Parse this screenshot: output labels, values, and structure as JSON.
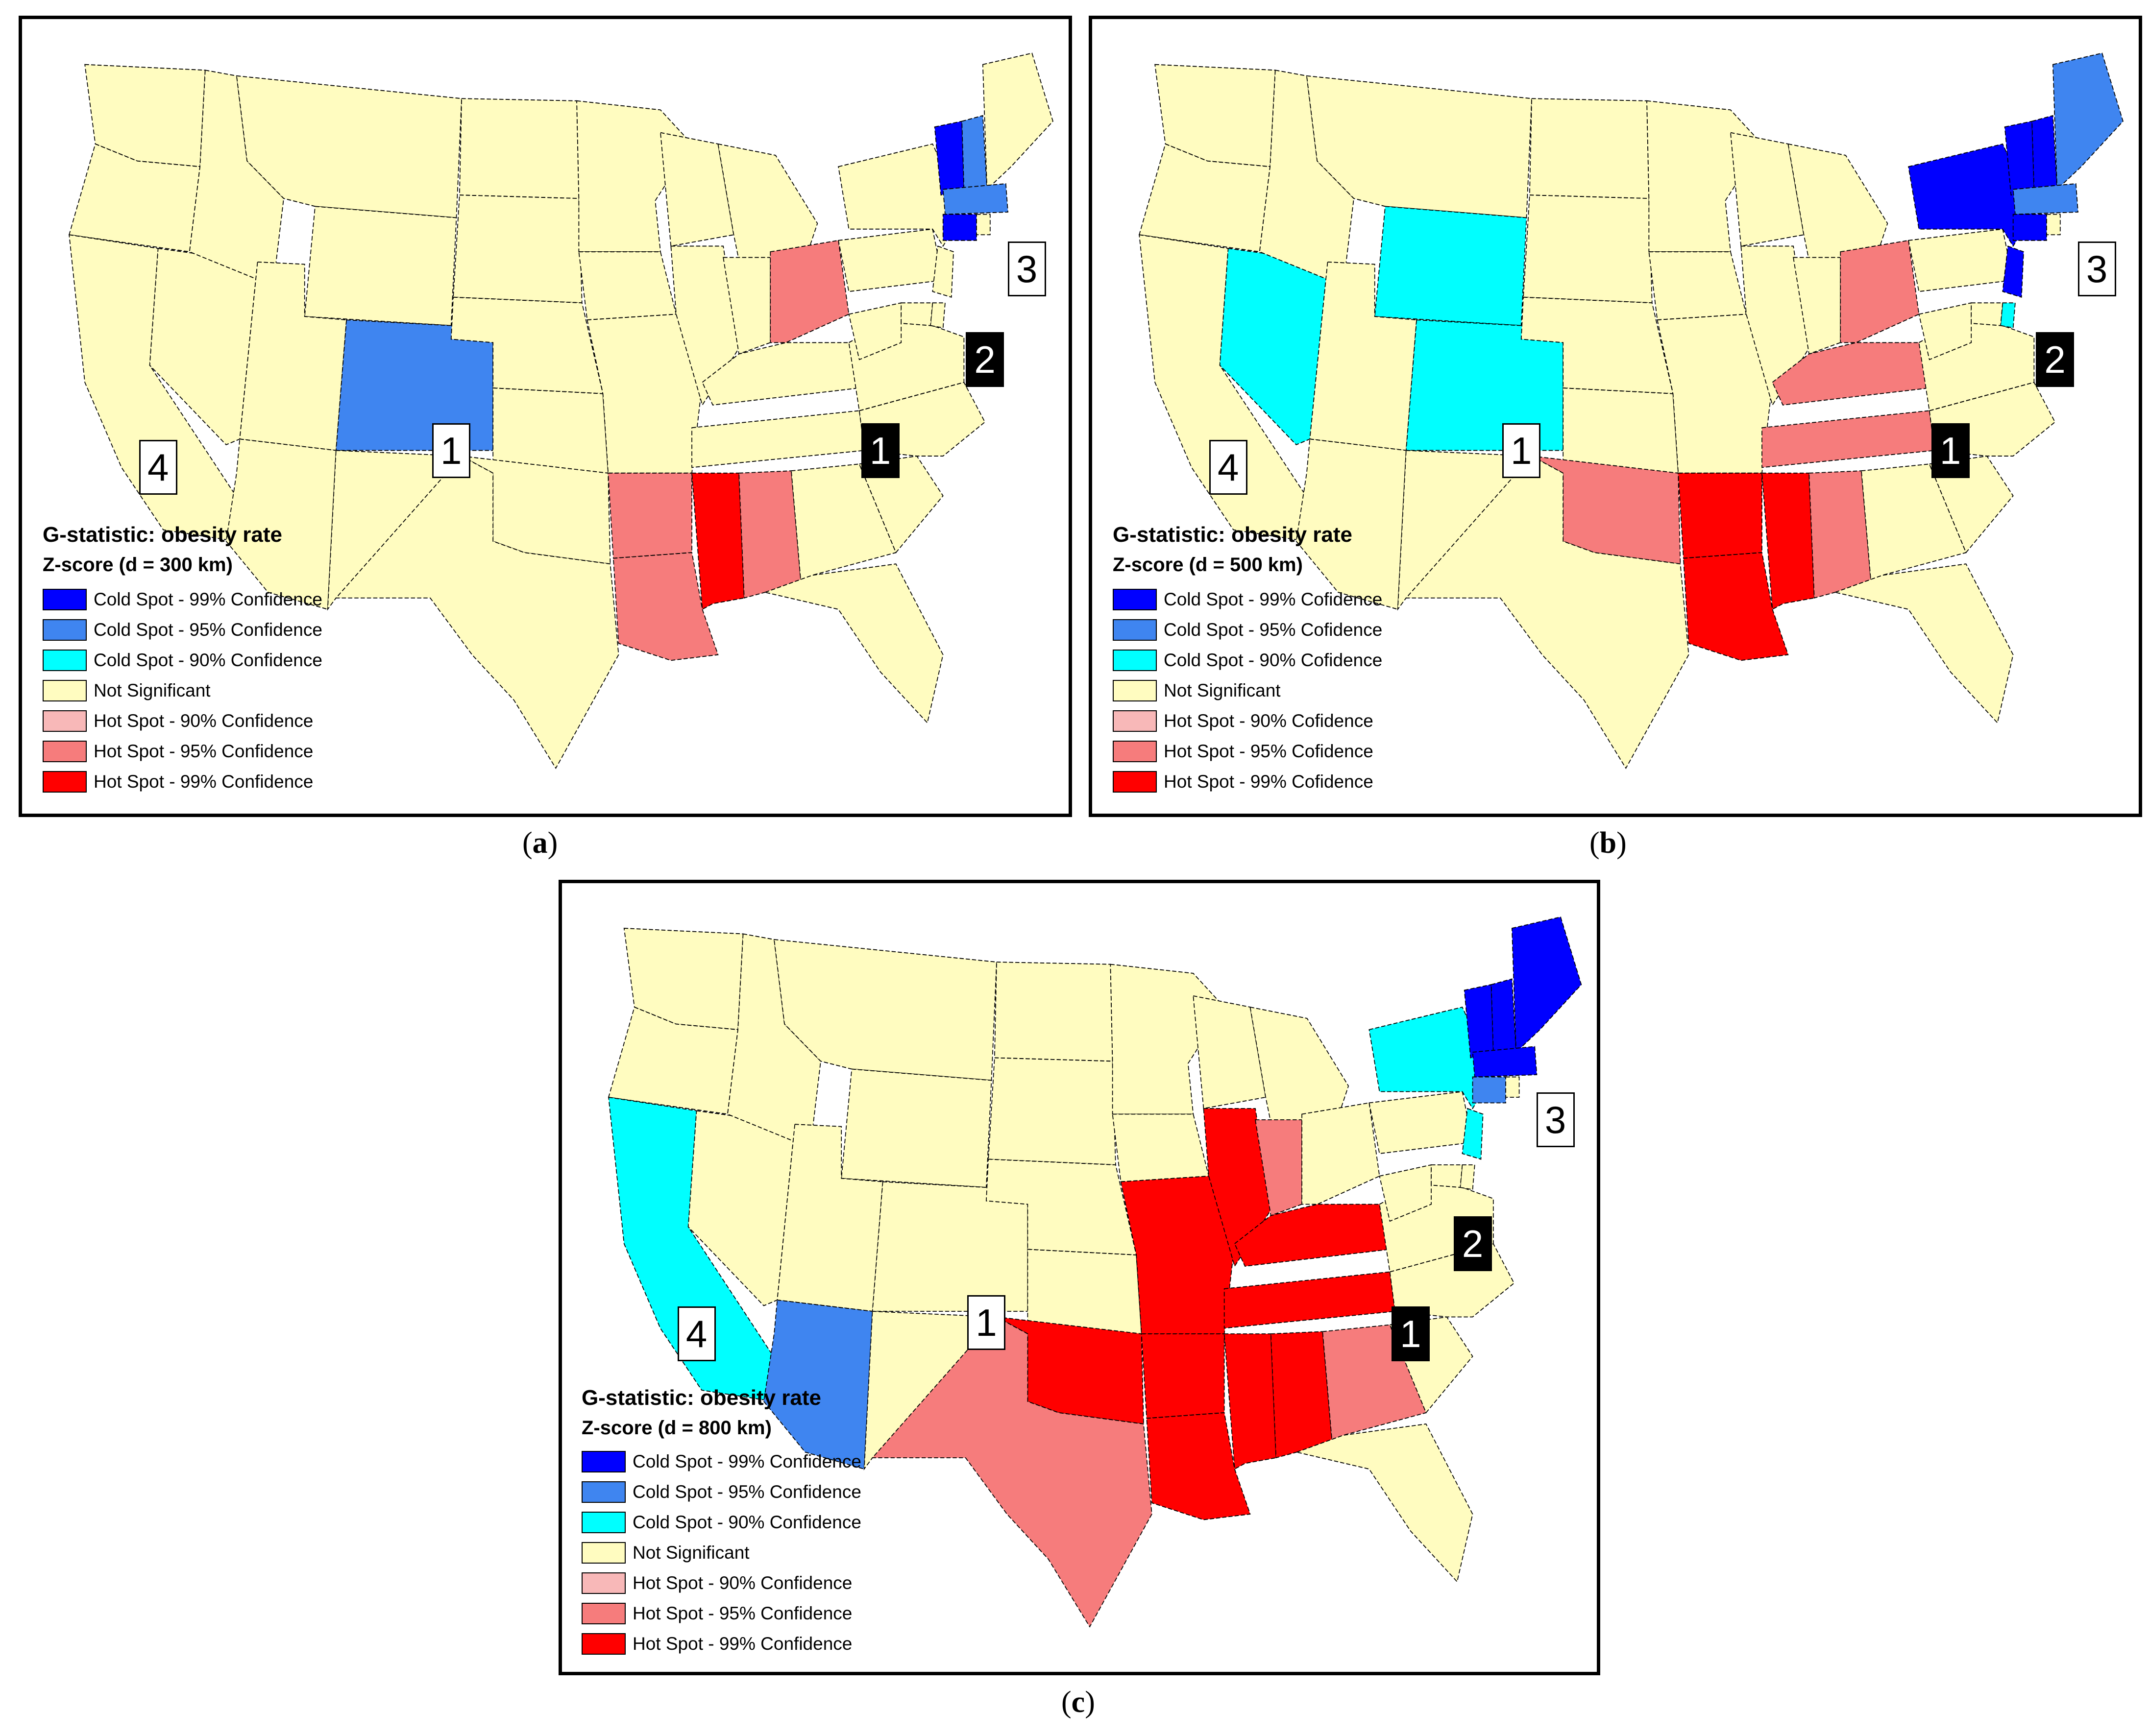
{
  "colors": {
    "cold_99": "#0000ff",
    "cold_95": "#3f85f0",
    "cold_90": "#00ffff",
    "not_significant": "#fffcc0",
    "hot_90": "#f8b8b8",
    "hot_95": "#f67c7c",
    "hot_99": "#ff0000",
    "border": "#000000"
  },
  "panels": [
    {
      "id": "a",
      "caption_letter": "a",
      "title": "G-statistic: obesity rate",
      "subtitle": "Z-score (d = 300 km)",
      "legend": [
        {
          "label": "Cold Spot - 99% Confidence",
          "color_key": "cold_99"
        },
        {
          "label": "Cold Spot - 95% Confidence",
          "color_key": "cold_95"
        },
        {
          "label": "Cold Spot - 90% Confidence",
          "color_key": "cold_90"
        },
        {
          "label": "Not Significant",
          "color_key": "not_significant"
        },
        {
          "label": "Hot Spot - 90% Confidence",
          "color_key": "hot_90"
        },
        {
          "label": "Hot Spot - 95% Confidence",
          "color_key": "hot_95"
        },
        {
          "label": "Hot Spot - 99% Confidence",
          "color_key": "hot_99"
        }
      ],
      "markers": [
        {
          "label": "1",
          "style": "white"
        },
        {
          "label": "1",
          "style": "black"
        },
        {
          "label": "2",
          "style": "black"
        },
        {
          "label": "3",
          "style": "white"
        },
        {
          "label": "4",
          "style": "white"
        }
      ],
      "regions": {
        "colorado": "cold_95",
        "ohio": "hot_95",
        "arkansas": "hot_95",
        "louisiana": "hot_95",
        "mississippi": "hot_99",
        "alabama": "hot_95",
        "vermont": "cold_99",
        "new_hampshire": "cold_95",
        "massachusetts": "cold_95",
        "connecticut": "cold_99"
      }
    },
    {
      "id": "b",
      "caption_letter": "b",
      "title": "G-statistic: obesity rate",
      "subtitle": "Z-score (d = 500 km)",
      "legend": [
        {
          "label": "Cold Spot - 99% Cofidence",
          "color_key": "cold_99"
        },
        {
          "label": "Cold Spot - 95% Cofidence",
          "color_key": "cold_95"
        },
        {
          "label": "Cold Spot - 90% Cofidence",
          "color_key": "cold_90"
        },
        {
          "label": "Not Significant",
          "color_key": "not_significant"
        },
        {
          "label": "Hot Spot - 90% Cofidence",
          "color_key": "hot_90"
        },
        {
          "label": "Hot Spot - 95% Cofidence",
          "color_key": "hot_95"
        },
        {
          "label": "Hot Spot - 99% Cofidence",
          "color_key": "hot_99"
        }
      ],
      "markers": [
        {
          "label": "1",
          "style": "white"
        },
        {
          "label": "1",
          "style": "black"
        },
        {
          "label": "2",
          "style": "black"
        },
        {
          "label": "3",
          "style": "white"
        },
        {
          "label": "4",
          "style": "white"
        }
      ],
      "regions": {
        "nevada": "cold_90",
        "wyoming": "cold_90",
        "colorado": "cold_90",
        "oklahoma": "hot_95",
        "arkansas": "hot_99",
        "louisiana": "hot_99",
        "mississippi": "hot_99",
        "alabama": "hot_95",
        "tennessee": "hot_95",
        "kentucky": "hot_95",
        "ohio": "hot_95",
        "new_york": "cold_99",
        "vermont": "cold_99",
        "new_hampshire": "cold_99",
        "maine": "cold_95",
        "massachusetts": "cold_95",
        "connecticut": "cold_99",
        "new_jersey": "cold_99",
        "delaware": "cold_90"
      }
    },
    {
      "id": "c",
      "caption_letter": "c",
      "title": "G-statistic: obesity rate",
      "subtitle": "Z-score (d = 800 km)",
      "legend": [
        {
          "label": "Cold Spot - 99% Confidence",
          "color_key": "cold_99"
        },
        {
          "label": "Cold Spot - 95% Confidence",
          "color_key": "cold_95"
        },
        {
          "label": "Cold Spot - 90% Confidence",
          "color_key": "cold_90"
        },
        {
          "label": "Not Significant",
          "color_key": "not_significant"
        },
        {
          "label": "Hot Spot - 90% Confidence",
          "color_key": "hot_90"
        },
        {
          "label": "Hot Spot - 95% Confidence",
          "color_key": "hot_95"
        },
        {
          "label": "Hot Spot - 99% Confidence",
          "color_key": "hot_99"
        }
      ],
      "markers": [
        {
          "label": "1",
          "style": "white"
        },
        {
          "label": "1",
          "style": "black"
        },
        {
          "label": "2",
          "style": "black"
        },
        {
          "label": "3",
          "style": "white"
        },
        {
          "label": "4",
          "style": "white"
        }
      ],
      "regions": {
        "california": "cold_90",
        "arizona": "cold_95",
        "texas": "hot_95",
        "oklahoma": "hot_99",
        "missouri": "hot_99",
        "illinois": "hot_99",
        "indiana": "hot_95",
        "kentucky": "hot_99",
        "tennessee": "hot_99",
        "arkansas": "hot_99",
        "louisiana": "hot_99",
        "mississippi": "hot_99",
        "alabama": "hot_99",
        "georgia": "hot_95",
        "new_york": "cold_90",
        "vermont": "cold_99",
        "new_hampshire": "cold_99",
        "maine": "cold_99",
        "massachusetts": "cold_99",
        "connecticut": "cold_95",
        "new_jersey": "cold_90"
      }
    }
  ]
}
